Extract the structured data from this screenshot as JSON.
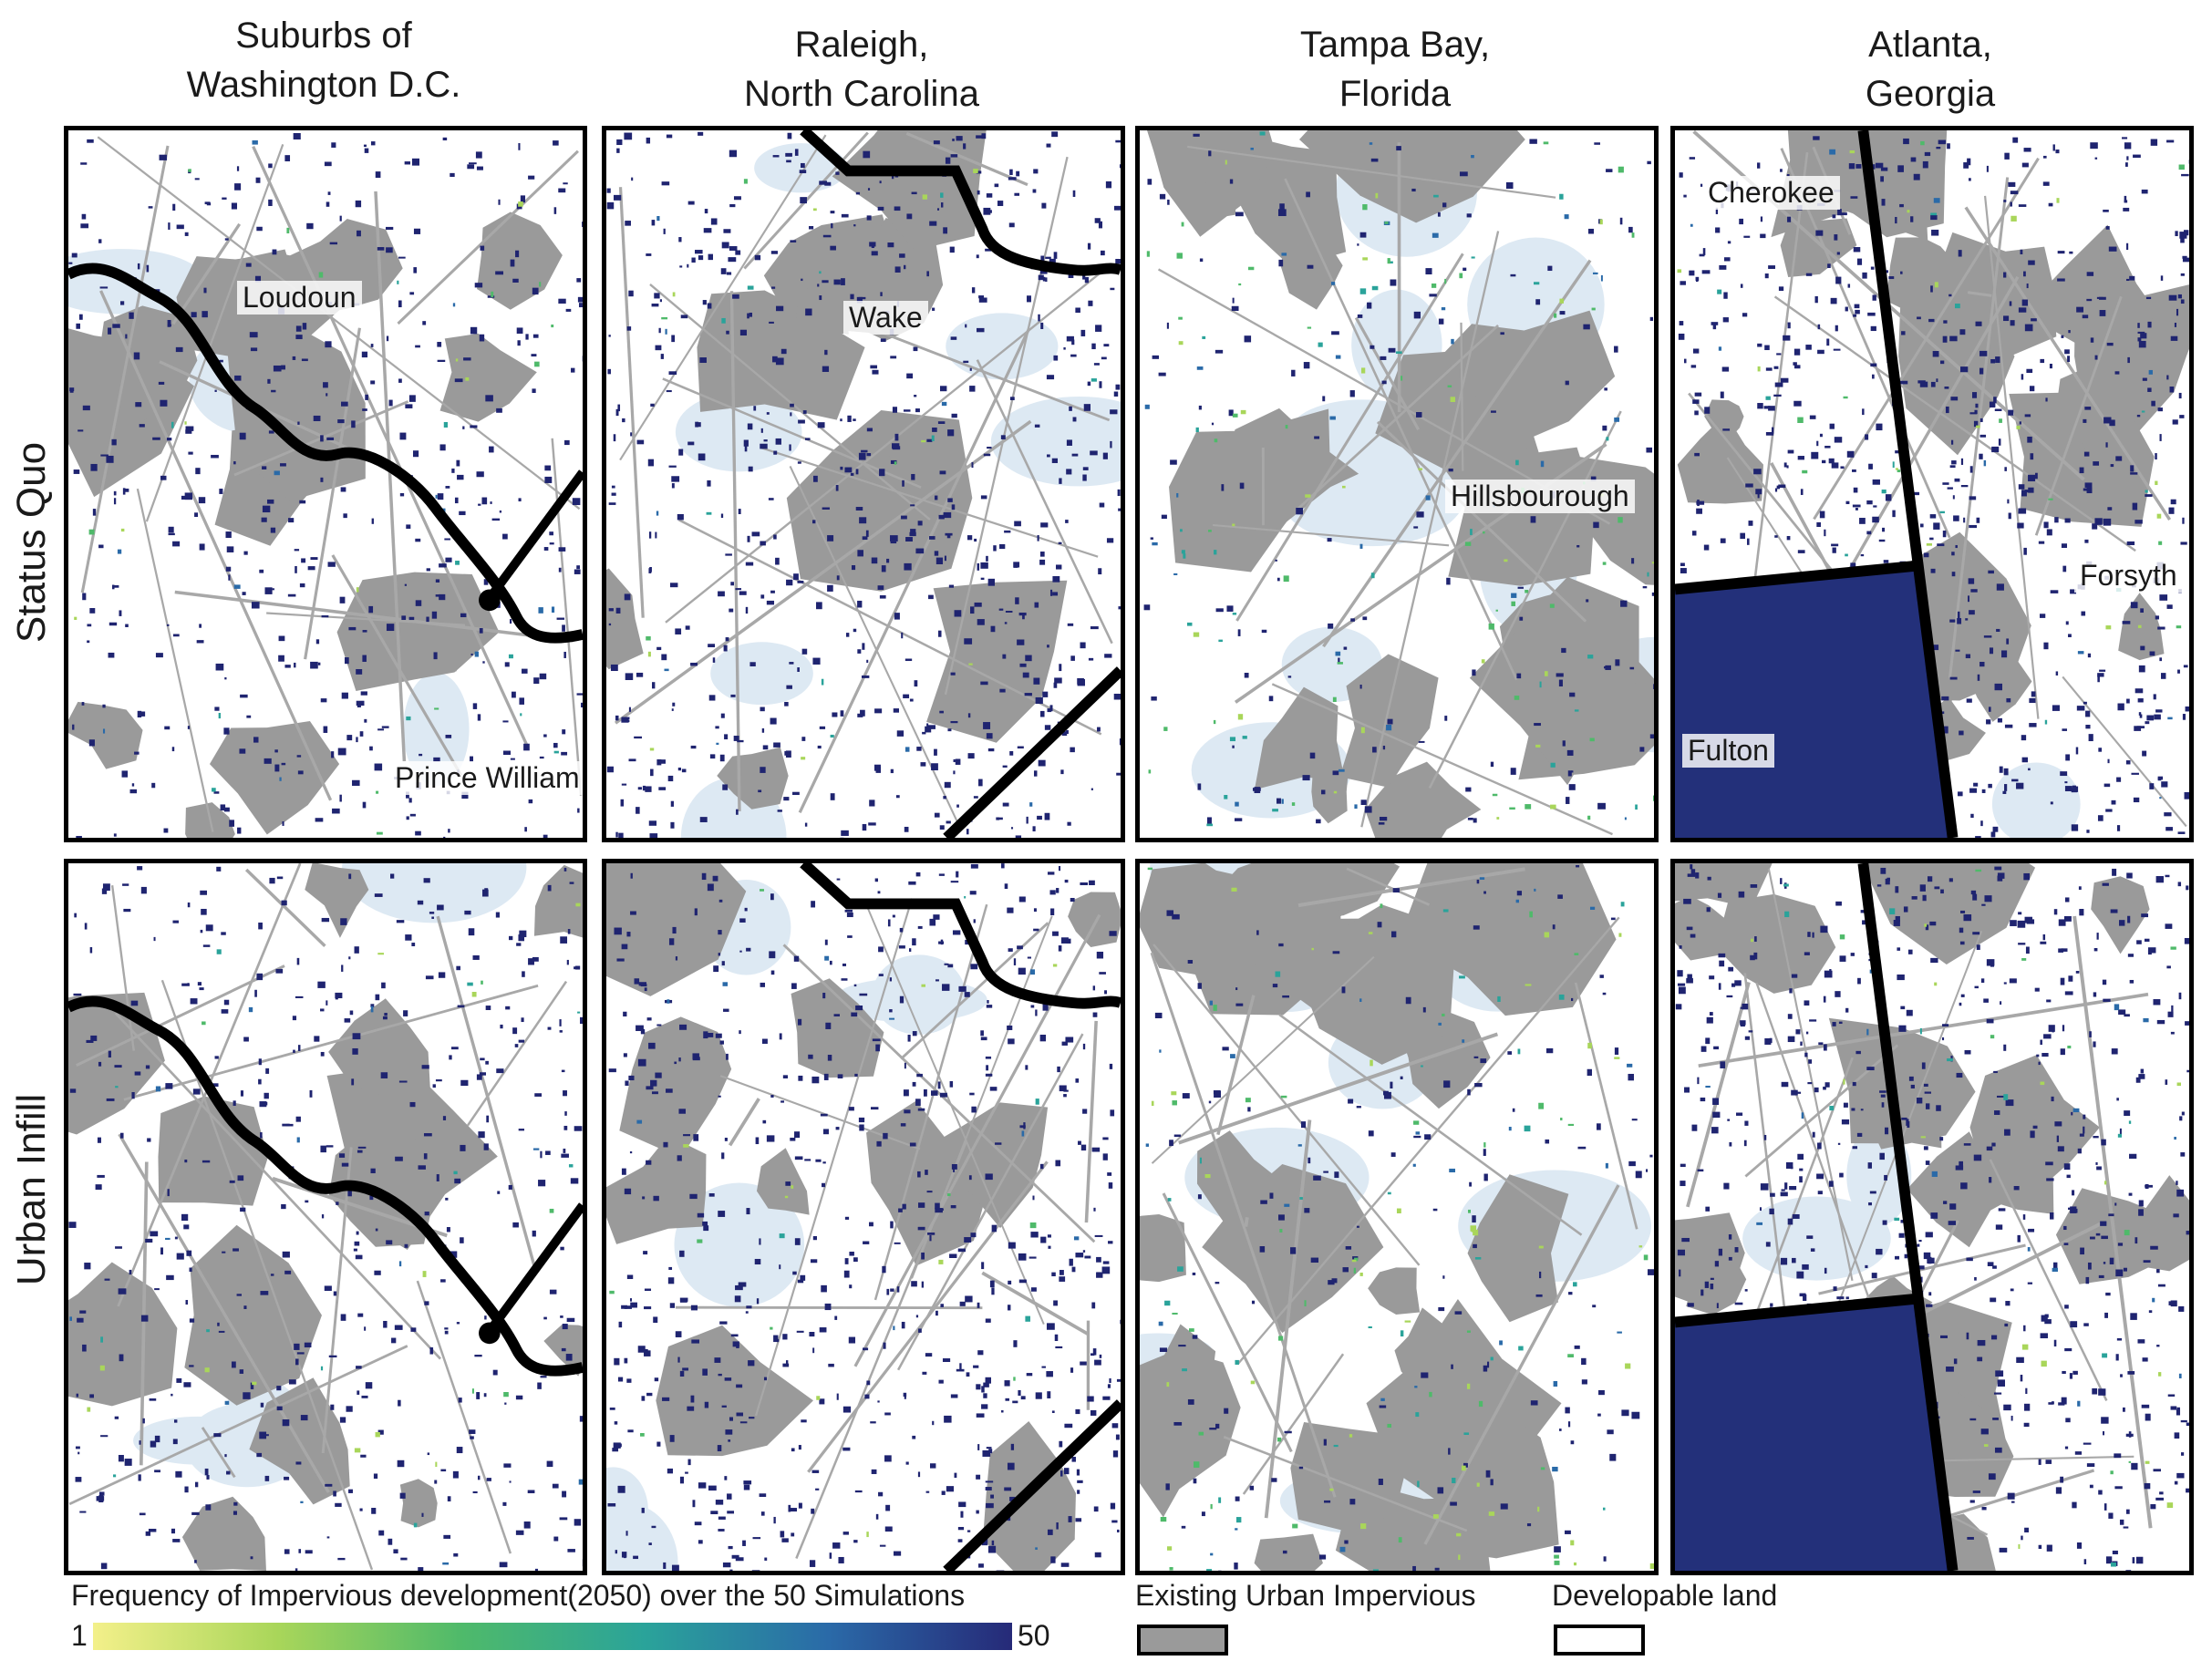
{
  "columns": [
    {
      "title": "Suburbs of\nWashington D.C."
    },
    {
      "title": "Raleigh,\nNorth Carolina"
    },
    {
      "title": "Tampa Bay,\nFlorida"
    },
    {
      "title": "Atlanta,\nGeorgia"
    }
  ],
  "rows": [
    {
      "title": "Status Quo"
    },
    {
      "title": "Urban Infill"
    }
  ],
  "map_labels": {
    "dc": [
      "Loudoun",
      "Prince William"
    ],
    "raleigh": [
      "Wake"
    ],
    "tampa": [
      "Hillsbourough"
    ],
    "atlanta": [
      "Cherokee",
      "Forsyth",
      "Fulton"
    ]
  },
  "legend": {
    "frequency_title": "Frequency of Impervious development(2050) over the 50 Simulations",
    "min_label": "1",
    "max_label": "50",
    "existing_label": "Existing Urban Impervious",
    "developable_label": "Developable land",
    "colors": {
      "existing": "#9a9a9a",
      "developable": "#ffffff",
      "gradient": [
        "#f3f08a",
        "#a9d65a",
        "#4fba6a",
        "#2aa39a",
        "#2a6aa8",
        "#262a78"
      ],
      "water": "#dde9f3",
      "high_density": "#1f2470",
      "boundary": "#000000"
    }
  }
}
